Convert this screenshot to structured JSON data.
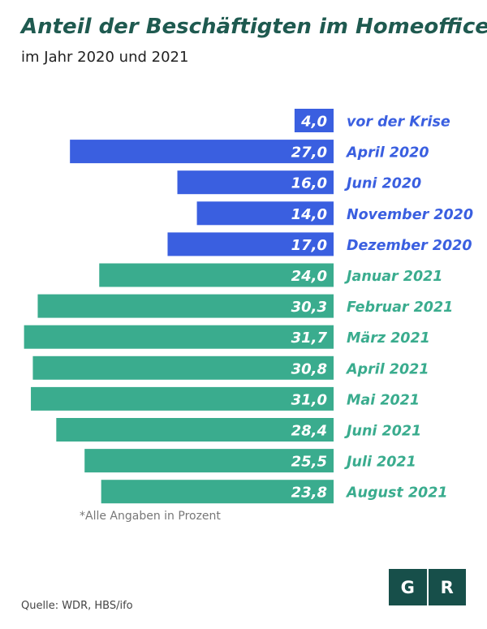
{
  "title": "Anteil der Beschäftigten im Homeoffice",
  "subtitle": "im Jahr 2020 und 2021",
  "footnote": "*Alle Angaben in Prozent",
  "source": "Quelle: WDR, HBS/ifo",
  "logo": {
    "left": "G",
    "right": "R"
  },
  "colors": {
    "series_2020": "#3a5fe0",
    "series_2021": "#3aac8e",
    "title": "#1f5a50",
    "logo_bg": "#174f4a"
  },
  "chart_data": {
    "type": "bar",
    "orientation": "horizontal",
    "bar_direction": "right-to-left",
    "grid": false,
    "categories": [
      "vor der Krise",
      "April 2020",
      "Juni 2020",
      "November 2020",
      "Dezember 2020",
      "Januar 2021",
      "Februar 2021",
      "März 2021",
      "April 2021",
      "Mai 2021",
      "Juni 2021",
      "Juli 2021",
      "August 2021"
    ],
    "values": [
      4.0,
      27.0,
      16.0,
      14.0,
      17.0,
      24.0,
      30.3,
      31.7,
      30.8,
      31.0,
      28.4,
      25.5,
      23.8
    ],
    "value_labels": [
      "4,0",
      "27,0",
      "16,0",
      "14,0",
      "17,0",
      "24,0",
      "30,3",
      "31,7",
      "30,8",
      "31,0",
      "28,4",
      "25,5",
      "23,8"
    ],
    "groups": [
      "2020",
      "2020",
      "2020",
      "2020",
      "2020",
      "2021",
      "2021",
      "2021",
      "2021",
      "2021",
      "2021",
      "2021",
      "2021"
    ],
    "xlim": [
      0,
      32.5
    ]
  }
}
